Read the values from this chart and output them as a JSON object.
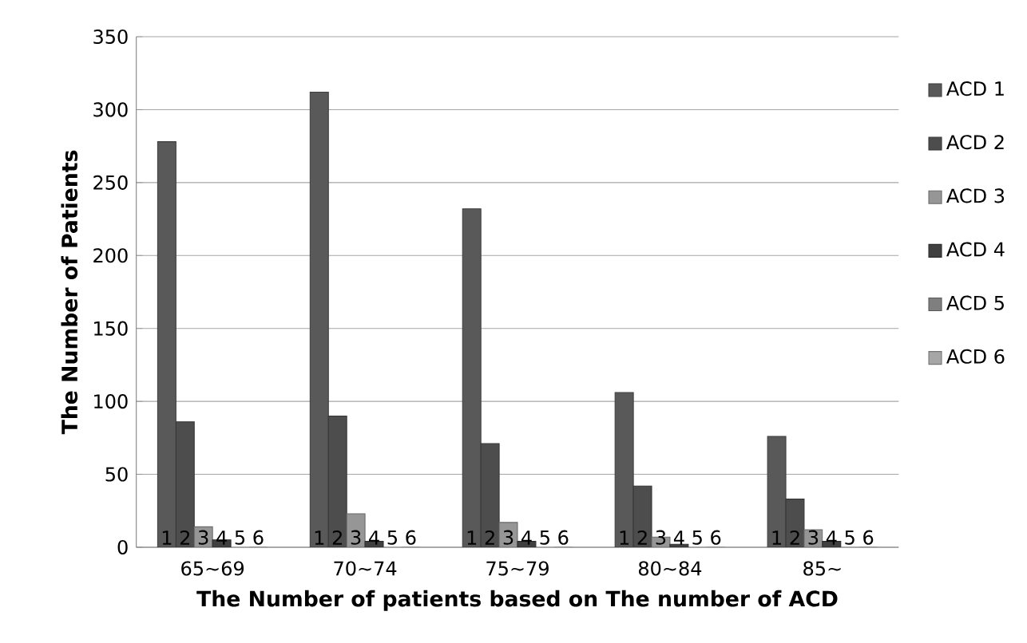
{
  "chart_data": {
    "type": "bar",
    "xlabel": "The Number of patients based on The number of ACD",
    "ylabel": "The Number of Patients",
    "categories": [
      "65~69",
      "70~74",
      "75~79",
      "80~84",
      "85~"
    ],
    "series": [
      {
        "name": "ACD 1",
        "color": "#595959",
        "values": [
          278,
          312,
          232,
          106,
          76
        ]
      },
      {
        "name": "ACD 2",
        "color": "#4d4d4d",
        "values": [
          86,
          90,
          71,
          42,
          33
        ]
      },
      {
        "name": "ACD 3",
        "color": "#969696",
        "values": [
          14,
          23,
          17,
          7,
          12
        ]
      },
      {
        "name": "ACD 4",
        "color": "#404040",
        "values": [
          5,
          4,
          4,
          2,
          4
        ]
      },
      {
        "name": "ACD 5",
        "color": "#7f7f7f",
        "values": [
          null,
          null,
          null,
          null,
          null
        ]
      },
      {
        "name": "ACD 6",
        "color": "#a6a6a6",
        "values": [
          0,
          0,
          0,
          0,
          0
        ]
      }
    ],
    "ylim": [
      0,
      350
    ],
    "yticks": [
      0,
      50,
      100,
      150,
      200,
      250,
      300,
      350
    ],
    "grid": "y",
    "legend": "right",
    "annotations": [
      {
        "text": "1",
        "x": "65~69",
        "y": 0
      },
      {
        "text": "2",
        "x": "65~69",
        "y": 0
      },
      {
        "text": "3",
        "x": "65~69",
        "y": 0
      },
      {
        "text": "4",
        "x": "65~69",
        "y": 0
      },
      {
        "text": "5",
        "x": "65~69",
        "y": 0
      },
      {
        "text": "6",
        "x": "65~69",
        "y": 0
      },
      {
        "text": "1",
        "x": "70~74",
        "y": 0
      },
      {
        "text": "2",
        "x": "70~74",
        "y": 0
      },
      {
        "text": "3",
        "x": "70~74",
        "y": 0
      },
      {
        "text": "4",
        "x": "70~74",
        "y": 0
      },
      {
        "text": "5",
        "x": "70~74",
        "y": 0
      },
      {
        "text": "6",
        "x": "70~74",
        "y": 0
      },
      {
        "text": "1",
        "x": "75~79",
        "y": 0
      },
      {
        "text": "2",
        "x": "75~79",
        "y": 0
      },
      {
        "text": "3",
        "x": "75~79",
        "y": 0
      },
      {
        "text": "4",
        "x": "75~79",
        "y": 0
      },
      {
        "text": "5",
        "x": "75~79",
        "y": 0
      },
      {
        "text": "6",
        "x": "75~79",
        "y": 0
      },
      {
        "text": "1",
        "x": "80~84",
        "y": 0
      },
      {
        "text": "2",
        "x": "80~84",
        "y": 0
      },
      {
        "text": "3",
        "x": "80~84",
        "y": 0
      },
      {
        "text": "4",
        "x": "80~84",
        "y": 0
      },
      {
        "text": "5",
        "x": "80~84",
        "y": 0
      },
      {
        "text": "6",
        "x": "80~84",
        "y": 0
      },
      {
        "text": "1",
        "x": "85~",
        "y": 0
      },
      {
        "text": "2",
        "x": "85~",
        "y": 0
      },
      {
        "text": "3",
        "x": "85~",
        "y": 0
      },
      {
        "text": "4",
        "x": "85~",
        "y": 0
      },
      {
        "text": "5",
        "x": "85~",
        "y": 0
      },
      {
        "text": "6",
        "x": "85~",
        "y": 0
      }
    ]
  }
}
